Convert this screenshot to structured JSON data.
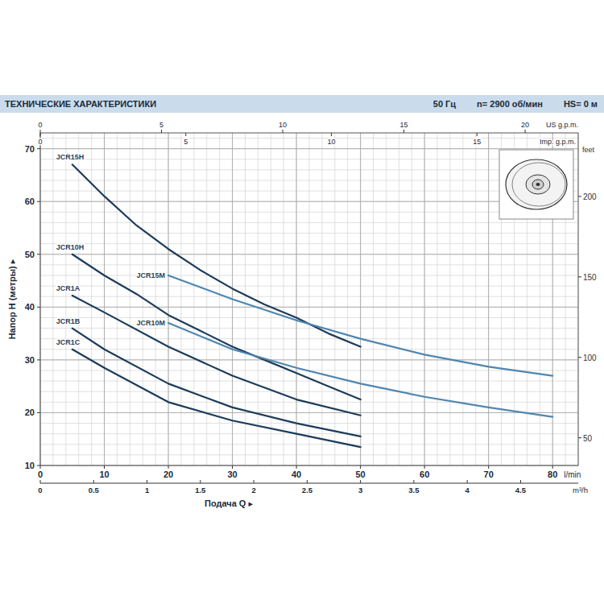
{
  "chart_data": {
    "type": "line",
    "title": "ТЕХНИЧЕСКИЕ ХАРАКТЕРИСТИКИ",
    "annotations": [
      "50 Гц",
      "n= 2900 об/мин",
      "HS= 0 м"
    ],
    "xlabel": "Подача Q ▸",
    "ylabel": "Напор H (метры) ▸",
    "xunit": "l/min",
    "xlim": [
      0,
      84
    ],
    "xticks": [
      0,
      10,
      20,
      30,
      40,
      50,
      60,
      70,
      80
    ],
    "ylim": [
      10,
      73
    ],
    "yticks": [
      10,
      20,
      30,
      40,
      50,
      60,
      70
    ],
    "y2label": "feet",
    "y2lim": [
      32.81,
      239.5
    ],
    "y2ticks": [
      50,
      100,
      150,
      200
    ],
    "x2label": "m³/h",
    "x2lim": [
      0,
      5.04
    ],
    "x2ticks": [
      0,
      0.5,
      1,
      1.5,
      2,
      2.5,
      3,
      3.5,
      4,
      4.5
    ],
    "x3label": "US g.p.m.",
    "x3lim": [
      0,
      22.19
    ],
    "x3ticks": [
      0,
      5,
      10,
      15,
      20
    ],
    "x4label": "Imp. g.p.m.",
    "x4lim": [
      0,
      18.48
    ],
    "x4ticks": [
      0,
      5,
      10,
      15
    ],
    "grid": true,
    "series": [
      {
        "name": "JCR15H",
        "color": "#1d3c5a",
        "x": [
          5,
          10,
          15,
          20,
          25,
          30,
          35,
          40,
          45,
          50
        ],
        "values": [
          67,
          61,
          55.5,
          51,
          47,
          43.5,
          40.5,
          38,
          35,
          32.5
        ]
      },
      {
        "name": "JCR15M",
        "color": "#4f86b0",
        "x": [
          20,
          30,
          40,
          50,
          60,
          70,
          80
        ],
        "values": [
          46,
          41.5,
          37.5,
          34,
          31,
          28.7,
          27
        ]
      },
      {
        "name": "JCR10H",
        "color": "#1d3c5a",
        "x": [
          5,
          10,
          15,
          20,
          25,
          30,
          35,
          40,
          45,
          50
        ],
        "values": [
          50,
          46,
          42.5,
          38.5,
          35.5,
          32.5,
          30,
          27.5,
          25,
          22.5
        ]
      },
      {
        "name": "JCR10M",
        "color": "#4f86b0",
        "x": [
          20,
          30,
          40,
          50,
          60,
          70,
          80
        ],
        "values": [
          37,
          32,
          28.5,
          25.5,
          23,
          21,
          19.2
        ]
      },
      {
        "name": "JCR1A",
        "color": "#1d3c5a",
        "x": [
          5,
          10,
          20,
          30,
          40,
          50
        ],
        "values": [
          42.2,
          39,
          32.5,
          27,
          22.5,
          19.5
        ]
      },
      {
        "name": "JCR1B",
        "color": "#1d3c5a",
        "x": [
          5,
          10,
          20,
          30,
          40,
          50
        ],
        "values": [
          36,
          32,
          25.5,
          21,
          18,
          15.5
        ]
      },
      {
        "name": "JCR1C",
        "color": "#1d3c5a",
        "x": [
          5,
          10,
          20,
          30,
          40,
          50
        ],
        "values": [
          32,
          28.5,
          22,
          18.5,
          16,
          13.5
        ]
      }
    ]
  }
}
